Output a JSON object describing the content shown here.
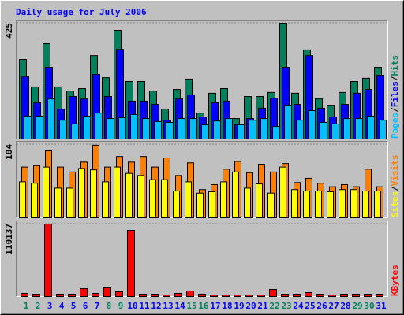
{
  "chart_data": [
    {
      "type": "bar",
      "title": "Daily usage for July 2006",
      "categories": [
        "1",
        "2",
        "3",
        "4",
        "5",
        "6",
        "7",
        "8",
        "9",
        "10",
        "11",
        "12",
        "13",
        "14",
        "15",
        "16",
        "17",
        "18",
        "19",
        "20",
        "21",
        "22",
        "23",
        "24",
        "25",
        "26",
        "27",
        "28",
        "29",
        "30",
        "31"
      ],
      "category_colors": [
        "#00805c",
        "#00805c",
        "#0000ff",
        "#0000ff",
        "#0000ff",
        "#0000ff",
        "#0000ff",
        "#00805c",
        "#00805c",
        "#0000ff",
        "#0000ff",
        "#0000ff",
        "#0000ff",
        "#0000ff",
        "#00805c",
        "#00805c",
        "#0000ff",
        "#0000ff",
        "#0000ff",
        "#0000ff",
        "#0000ff",
        "#00805c",
        "#00805c",
        "#0000ff",
        "#0000ff",
        "#0000ff",
        "#0000ff",
        "#0000ff",
        "#00805c",
        "#00805c",
        "#0000ff"
      ],
      "legend_separator": "/",
      "series": [
        {
          "name": "Hits",
          "color": "#00805c",
          "values": [
            292,
            191,
            350,
            191,
            176,
            185,
            306,
            225,
            399,
            211,
            211,
            176,
            110,
            182,
            220,
            95,
            168,
            185,
            75,
            156,
            156,
            171,
            425,
            168,
            327,
            147,
            124,
            171,
            211,
            223,
            263
          ]
        },
        {
          "name": "Files",
          "color": "#0000ff",
          "values": [
            228,
            133,
            263,
            110,
            156,
            147,
            237,
            156,
            329,
            139,
            139,
            127,
            69,
            147,
            162,
            81,
            133,
            139,
            52,
            75,
            113,
            150,
            263,
            127,
            306,
            113,
            81,
            127,
            168,
            182,
            234
          ]
        },
        {
          "name": "Pages",
          "color": "#00c0ff",
          "values": [
            84,
            84,
            147,
            69,
            55,
            84,
            95,
            75,
            78,
            90,
            75,
            64,
            61,
            75,
            75,
            52,
            66,
            75,
            52,
            69,
            75,
            46,
            124,
            69,
            104,
            61,
            55,
            75,
            75,
            84,
            69
          ]
        }
      ],
      "ylim": [
        0,
        425
      ],
      "yticks": [
        425
      ]
    },
    {
      "type": "bar",
      "series": [
        {
          "name": "Visits",
          "color": "#ff8000",
          "values": [
            72,
            74,
            95,
            72,
            65,
            79,
            103,
            72,
            87,
            79,
            87,
            72,
            85,
            60,
            78,
            40,
            47,
            69,
            80,
            64,
            76,
            65,
            77,
            50,
            56,
            49,
            44,
            47,
            44,
            69,
            44
          ]
        },
        {
          "name": "Sites",
          "color": "#ffff00",
          "values": [
            51,
            49,
            72,
            42,
            42,
            70,
            68,
            51,
            72,
            63,
            60,
            54,
            54,
            38,
            51,
            35,
            37,
            51,
            65,
            42,
            48,
            35,
            72,
            40,
            38,
            38,
            37,
            40,
            40,
            38,
            38
          ]
        }
      ],
      "ylim": [
        0,
        104
      ],
      "yticks": [
        104
      ]
    },
    {
      "type": "bar",
      "series": [
        {
          "name": "KBytes",
          "color": "#ff0000",
          "values": [
            4800,
            3600,
            110137,
            3600,
            3600,
            12000,
            4800,
            13200,
            7200,
            100560,
            3600,
            3600,
            2400,
            4800,
            8400,
            3600,
            2400,
            2400,
            2400,
            2400,
            2400,
            10800,
            3600,
            3600,
            6000,
            3600,
            2400,
            3600,
            3600,
            3600,
            3600
          ]
        }
      ],
      "ylim": [
        0,
        110137
      ],
      "yticks": [
        110137
      ]
    }
  ]
}
